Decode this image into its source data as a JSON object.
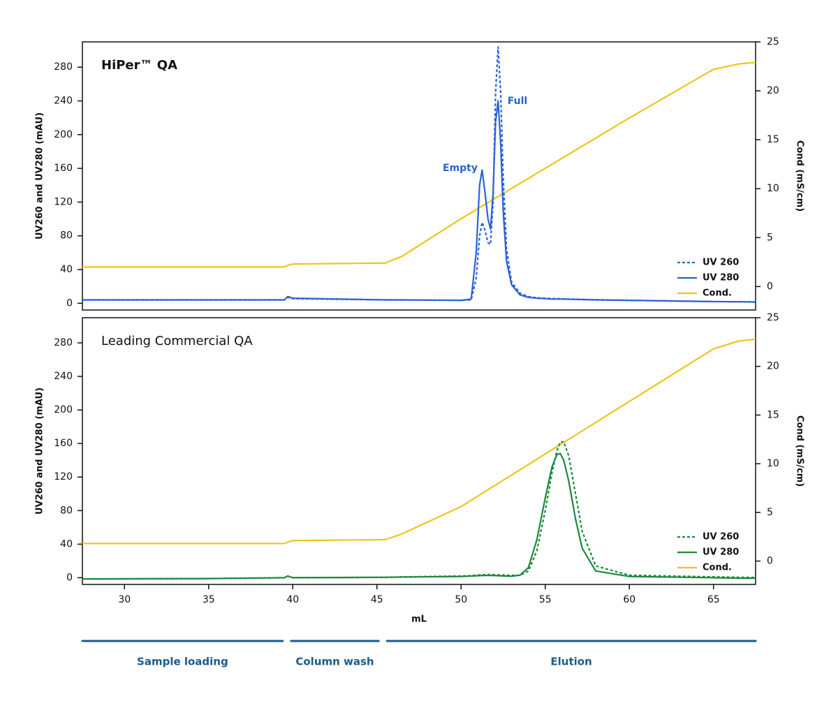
{
  "chart_data": [
    {
      "type": "line",
      "title": "HiPer™ QA",
      "ylabel": "UV260 and UV280 (mAU)",
      "y2label": "Cond (mS/cm)",
      "annotations": [
        "Empty",
        "Full"
      ],
      "xlim": [
        27.5,
        67.5
      ],
      "ylim": [
        -8,
        310
      ],
      "yticks": [
        0,
        40,
        80,
        120,
        160,
        200,
        240,
        280
      ],
      "y2lim": [
        -2.4,
        25
      ],
      "y2ticks": [
        0,
        5,
        10,
        15,
        20,
        25
      ],
      "legend": "lower right",
      "x": [
        27.5,
        35,
        39.5,
        39.7,
        40,
        45.5,
        46.5,
        50,
        50.6,
        50.9,
        51.1,
        51.25,
        51.4,
        51.6,
        51.75,
        51.9,
        52.05,
        52.2,
        52.35,
        52.5,
        52.7,
        53,
        53.5,
        54,
        54.5,
        55,
        55.4,
        55.7,
        55.9,
        56.1,
        56.4,
        56.8,
        57.2,
        58,
        60,
        65,
        66.5,
        67.5
      ],
      "series": [
        {
          "name": "UV 260",
          "color": "#2a63d4",
          "style": "dashed",
          "values": [
            4,
            4,
            4,
            7,
            5.5,
            4,
            4,
            3.5,
            4,
            30,
            80,
            96,
            88,
            72,
            70,
            120,
            250,
            304,
            250,
            150,
            65,
            25,
            12,
            8,
            6.5,
            6,
            5.5,
            5.5,
            5.5,
            5.2,
            5,
            4.8,
            4.6,
            4.2,
            3.5,
            2,
            1.8,
            1.5
          ]
        },
        {
          "name": "UV 280",
          "color": "#2a63d4",
          "style": "solid",
          "values": [
            4,
            4,
            4,
            8,
            6,
            4,
            4,
            3.5,
            5,
            60,
            140,
            158,
            135,
            100,
            88,
            130,
            215,
            240,
            190,
            110,
            50,
            22,
            10,
            7,
            6,
            5.5,
            5,
            5,
            5,
            5,
            4.8,
            4.6,
            4.4,
            4,
            3.5,
            2,
            1.8,
            1.5
          ]
        },
        {
          "name": "Cond.",
          "color": "#f0c419",
          "style": "solid",
          "axis": "y2",
          "values": [
            2.0,
            2.0,
            2.0,
            2.15,
            2.3,
            2.4,
            3.1,
            6.93,
            7.55,
            7.86,
            8.07,
            8.22,
            8.37,
            8.58,
            8.73,
            8.89,
            9.04,
            9.2,
            9.35,
            9.51,
            9.71,
            10.02,
            10.54,
            11.05,
            11.57,
            12.08,
            12.49,
            12.8,
            13.01,
            13.22,
            13.52,
            13.94,
            14.35,
            15.17,
            17.23,
            22.2,
            22.75,
            22.9
          ]
        }
      ]
    },
    {
      "type": "line",
      "title": "Leading Commercial QA",
      "ylabel": "UV260 and UV280 (mAU)",
      "y2label": "Cond (mS/cm)",
      "xlabel": "mL",
      "xlim": [
        27.5,
        67.5
      ],
      "xticks": [
        30,
        35,
        40,
        45,
        50,
        55,
        60,
        65
      ],
      "ylim": [
        -8,
        310
      ],
      "yticks": [
        0,
        40,
        80,
        120,
        160,
        200,
        240,
        280
      ],
      "y2lim": [
        -2.4,
        25
      ],
      "y2ticks": [
        0,
        5,
        10,
        15,
        20,
        25
      ],
      "legend": "lower right",
      "x": [
        27.5,
        35,
        39.5,
        39.7,
        40,
        45.5,
        46.5,
        50,
        50.6,
        50.9,
        51.1,
        51.25,
        51.4,
        51.6,
        51.75,
        51.9,
        52.05,
        52.2,
        52.35,
        52.5,
        52.7,
        53,
        53.5,
        54,
        54.5,
        55,
        55.4,
        55.7,
        55.9,
        56.1,
        56.4,
        56.8,
        57.2,
        58,
        60,
        65,
        66.5,
        67.5
      ],
      "series": [
        {
          "name": "UV 260",
          "color": "#1a8a3c",
          "style": "dashed",
          "values": [
            -1.5,
            -1,
            0,
            2,
            0,
            0.5,
            1,
            2,
            2.5,
            3,
            3.3,
            3.5,
            3.6,
            3.7,
            3.7,
            3.6,
            3.5,
            3.4,
            3.3,
            3.2,
            3,
            2.8,
            3,
            8,
            32,
            80,
            125,
            152,
            162,
            162,
            145,
            100,
            55,
            14,
            3,
            1,
            0.5,
            0.3
          ]
        },
        {
          "name": "UV 280",
          "color": "#1a8a3c",
          "style": "solid",
          "values": [
            -1.5,
            -1,
            0,
            2,
            0,
            0.5,
            0.8,
            1.5,
            2,
            2.3,
            2.5,
            2.6,
            2.7,
            2.7,
            2.7,
            2.6,
            2.5,
            2.4,
            2.3,
            2.1,
            2,
            1.8,
            3,
            12,
            45,
            95,
            132,
            147,
            148,
            140,
            115,
            70,
            35,
            8,
            1.5,
            0,
            -0.5,
            -0.5
          ]
        },
        {
          "name": "Cond.",
          "color": "#f0c419",
          "style": "solid",
          "axis": "y2",
          "values": [
            1.8,
            1.8,
            1.8,
            1.95,
            2.1,
            2.2,
            2.8,
            5.6,
            6.25,
            6.57,
            6.79,
            6.95,
            7.11,
            7.33,
            7.49,
            7.65,
            7.81,
            7.98,
            8.14,
            8.3,
            8.52,
            8.84,
            9.38,
            9.92,
            10.46,
            11.0,
            11.43,
            11.76,
            11.97,
            12.19,
            12.51,
            12.94,
            13.38,
            14.24,
            16.4,
            21.8,
            22.6,
            22.8
          ]
        }
      ],
      "phases": [
        {
          "label": "Sample loading",
          "range": [
            27.5,
            39.4
          ]
        },
        {
          "label": "Column wash",
          "range": [
            39.9,
            45.1
          ]
        },
        {
          "label": "Elution",
          "range": [
            45.6,
            67.5
          ]
        }
      ]
    }
  ]
}
